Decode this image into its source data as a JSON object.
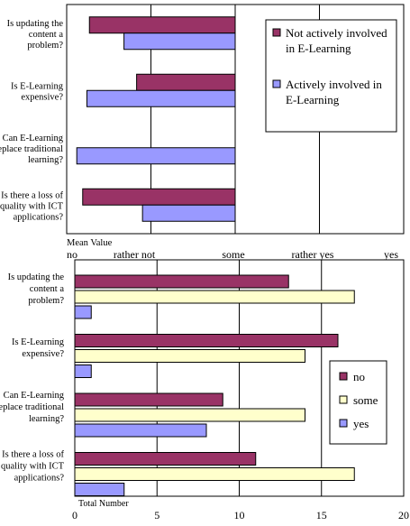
{
  "colors": {
    "no": "#993366",
    "some": "#ffffcc",
    "yes": "#9999ff",
    "not_involved": "#993366",
    "involved": "#9999ff",
    "stroke": "#000000"
  },
  "chart_data": [
    {
      "type": "bar",
      "orientation": "horizontal",
      "categories": [
        "Is updating the content a problem?",
        "Is E-Learning expensive?",
        "Can E-Learning replace traditional learning?",
        "Is there a loss of quality with ICT applications?"
      ],
      "category_lines": [
        [
          "Is updating the",
          "content a",
          "problem?"
        ],
        [
          "Is E-Learning",
          "expensive?"
        ],
        [
          "Can E-Learning",
          "replace traditional",
          "learning?"
        ],
        [
          "Is there a loss of",
          "quality with ICT",
          "applications?"
        ]
      ],
      "series": [
        {
          "name": "Not actively involved in E-Learning",
          "legend_lines": [
            "Not actively involved",
            "in E-Learning"
          ],
          "color_key": "not_involved",
          "values": [
            1.73,
            1.17,
            0.0,
            1.81
          ]
        },
        {
          "name": "Actively involved in E-Learning",
          "legend_lines": [
            "Actively involved in",
            "E-Learning"
          ],
          "color_key": "involved",
          "values": [
            1.32,
            1.76,
            1.88,
            1.1
          ]
        }
      ],
      "xlabel": "Mean Value",
      "tick_labels": [
        "no",
        "rather not",
        "some",
        "rather yes",
        "yes"
      ],
      "tick_values": [
        0,
        1,
        2,
        3,
        4
      ],
      "xlim": [
        0,
        4
      ],
      "grid": true,
      "legend": "right"
    },
    {
      "type": "bar",
      "orientation": "horizontal",
      "categories": [
        "Is updating the content a problem?",
        "Is E-Learning expensive?",
        "Can E-Learning replace traditional learning?",
        "Is there a loss of quality with ICT applications?"
      ],
      "category_lines": [
        [
          "Is updating the",
          "content a",
          "problem?"
        ],
        [
          "Is E-Learning",
          "expensive?"
        ],
        [
          "Can E-Learning",
          "replace traditional",
          "learning?"
        ],
        [
          "Is there a loss of",
          "quality with ICT",
          "applications?"
        ]
      ],
      "series": [
        {
          "name": "no",
          "color_key": "no",
          "values": [
            13,
            16,
            9,
            11
          ]
        },
        {
          "name": "some",
          "color_key": "some",
          "values": [
            17,
            14,
            14,
            17
          ]
        },
        {
          "name": "yes",
          "color_key": "yes",
          "values": [
            1,
            1,
            8,
            3
          ]
        }
      ],
      "xlabel": "Total Number",
      "tick_labels": [
        "0",
        "5",
        "10",
        "15",
        "20"
      ],
      "tick_values": [
        0,
        5,
        10,
        15,
        20
      ],
      "xlim": [
        0,
        20
      ],
      "grid": true,
      "legend": "right"
    }
  ]
}
